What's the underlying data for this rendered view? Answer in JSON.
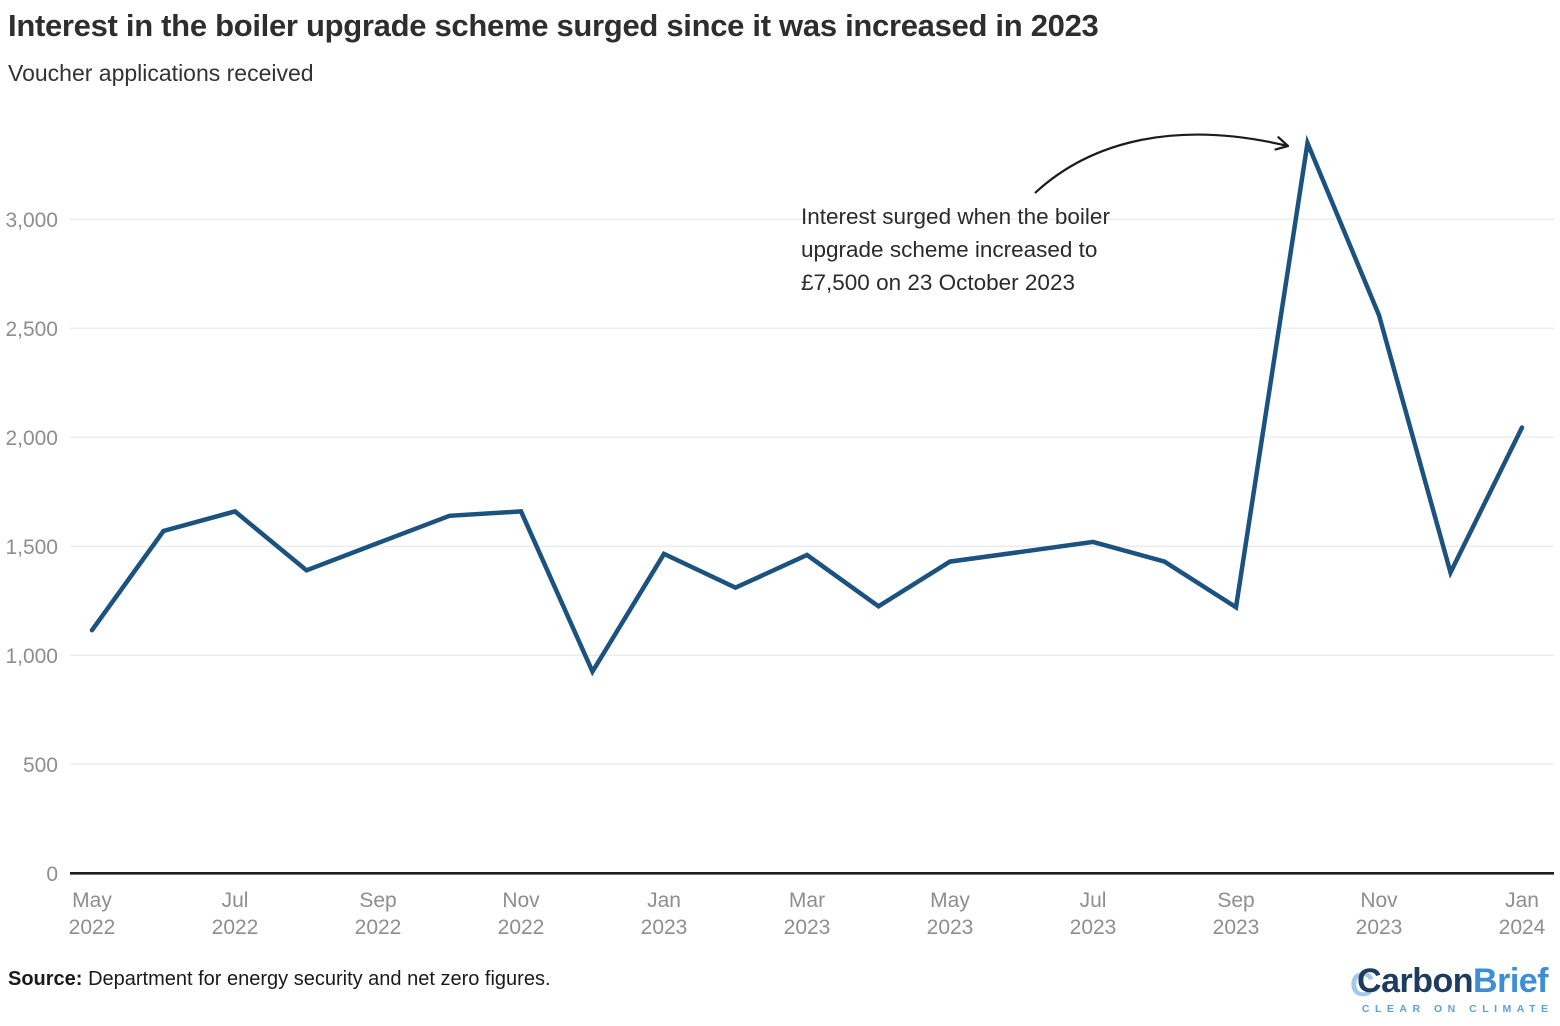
{
  "header": {
    "title": "Interest in the boiler upgrade scheme surged since it was increased in 2023",
    "subtitle": "Voucher applications received"
  },
  "annotation": {
    "text": "Interest surged when the boiler\nupgrade scheme increased to\n£7,500 on 23 October 2023"
  },
  "footer": {
    "source_label": "Source:",
    "source_text": "Department for energy security and net zero figures.",
    "logo": {
      "part1": "Carbon",
      "part2": "Brief",
      "tagline": "CLEAR ON CLIMATE",
      "navy": "#1d3c60",
      "blue": "#3d8ed6",
      "light_blue": "#5aa2d8"
    }
  },
  "chart_data": {
    "type": "line",
    "title": "Interest in the boiler upgrade scheme surged since it was increased in 2023",
    "subtitle": "Voucher applications received",
    "series_name": "Voucher applications received",
    "x": [
      "May 2022",
      "Jun 2022",
      "Jul 2022",
      "Aug 2022",
      "Sep 2022",
      "Oct 2022",
      "Nov 2022",
      "Dec 2022",
      "Jan 2023",
      "Feb 2023",
      "Mar 2023",
      "Apr 2023",
      "May 2023",
      "Jun 2023",
      "Jul 2023",
      "Aug 2023",
      "Sep 2023",
      "Oct 2023",
      "Nov 2023",
      "Dec 2023",
      "Jan 2024"
    ],
    "values": [
      1115,
      1570,
      1660,
      1390,
      1515,
      1640,
      1660,
      925,
      1465,
      1310,
      1460,
      1225,
      1430,
      1475,
      1520,
      1430,
      1220,
      3350,
      2560,
      1380,
      2045
    ],
    "xlabel": "",
    "ylabel": "",
    "ylim": [
      0,
      3350
    ],
    "grid": "horizontal",
    "legend": "none",
    "line_color": "#1b527f",
    "axis_color": "#1d1d1d",
    "grid_color": "#ececec",
    "tick_label_color": "#8e8e8e",
    "yticks": {
      "values": [
        0,
        500,
        1000,
        1500,
        2000,
        2500,
        3000
      ],
      "labels": [
        "0",
        "500",
        "1,000",
        "1,500",
        "2,000",
        "2,500",
        "3,000"
      ]
    },
    "xticks": [
      {
        "i": 0,
        "month": "May",
        "year": "2022"
      },
      {
        "i": 2,
        "month": "Jul",
        "year": "2022"
      },
      {
        "i": 4,
        "month": "Sep",
        "year": "2022"
      },
      {
        "i": 6,
        "month": "Nov",
        "year": "2022"
      },
      {
        "i": 8,
        "month": "Jan",
        "year": "2023"
      },
      {
        "i": 10,
        "month": "Mar",
        "year": "2023"
      },
      {
        "i": 12,
        "month": "May",
        "year": "2023"
      },
      {
        "i": 14,
        "month": "Jul",
        "year": "2023"
      },
      {
        "i": 16,
        "month": "Sep",
        "year": "2023"
      },
      {
        "i": 18,
        "month": "Nov",
        "year": "2023"
      },
      {
        "i": 20,
        "month": "Jan",
        "year": "2024"
      }
    ]
  }
}
